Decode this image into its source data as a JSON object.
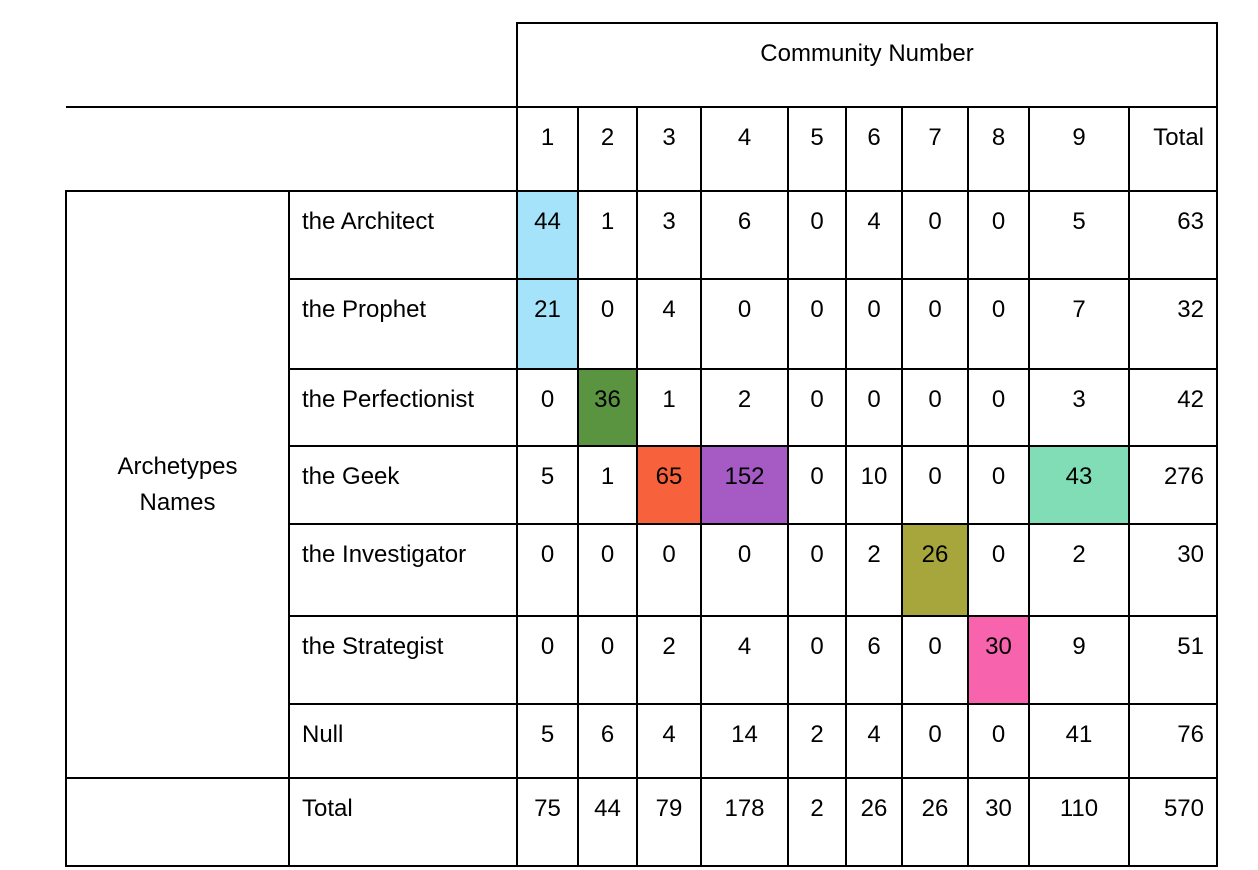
{
  "header": {
    "group_label": "Community Number",
    "columns": [
      "1",
      "2",
      "3",
      "4",
      "5",
      "6",
      "7",
      "8",
      "9",
      "Total"
    ]
  },
  "row_group_label_line1": "Archetypes",
  "row_group_label_line2": "Names",
  "rows": [
    {
      "name": "the Architect",
      "values": [
        "44",
        "1",
        "3",
        "6",
        "0",
        "4",
        "0",
        "0",
        "5"
      ],
      "total": "63"
    },
    {
      "name": "the Prophet",
      "values": [
        "21",
        "0",
        "4",
        "0",
        "0",
        "0",
        "0",
        "0",
        "7"
      ],
      "total": "32"
    },
    {
      "name": "the Perfectionist",
      "values": [
        "0",
        "36",
        "1",
        "2",
        "0",
        "0",
        "0",
        "0",
        "3"
      ],
      "total": "42"
    },
    {
      "name": "the Geek",
      "values": [
        "5",
        "1",
        "65",
        "152",
        "0",
        "10",
        "0",
        "0",
        "43"
      ],
      "total": "276"
    },
    {
      "name": "the Investigator",
      "values": [
        "0",
        "0",
        "0",
        "0",
        "0",
        "2",
        "26",
        "0",
        "2"
      ],
      "total": "30"
    },
    {
      "name": "the Strategist",
      "values": [
        "0",
        "0",
        "2",
        "4",
        "0",
        "6",
        "0",
        "30",
        "9"
      ],
      "total": "51"
    },
    {
      "name": "Null",
      "values": [
        "5",
        "6",
        "4",
        "14",
        "2",
        "4",
        "0",
        "0",
        "41"
      ],
      "total": "76"
    }
  ],
  "total_row": {
    "name": "Total",
    "values": [
      "75",
      "44",
      "79",
      "178",
      "2",
      "26",
      "26",
      "30",
      "110"
    ],
    "total": "570"
  },
  "highlight_colors": {
    "architect_prophet_c1": "#a4e3fa",
    "perfectionist_c2": "#5a9440",
    "geek_c3": "#f7623c",
    "geek_c4": "#a65ac4",
    "geek_c9": "#80ddb5",
    "investigator_c7": "#a6a63c",
    "strategist_c8": "#f863ad"
  }
}
